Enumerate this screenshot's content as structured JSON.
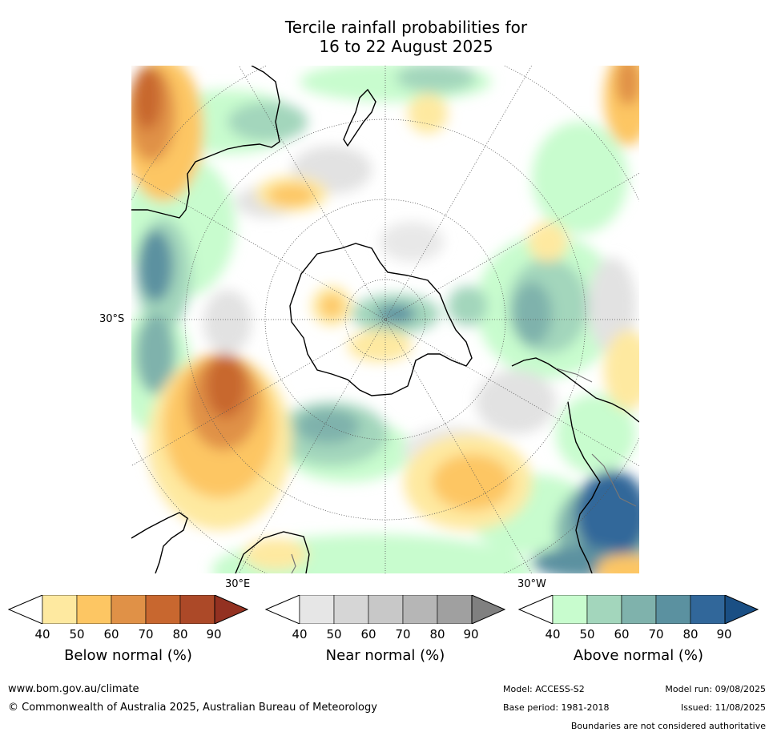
{
  "title_line1": "Tercile rainfall probabilities for",
  "title_line2": "16 to 22 August 2025",
  "map": {
    "lat_label": "30°S",
    "lon_labels": [
      "30°E",
      "30°W"
    ]
  },
  "legends": [
    {
      "name": "Below normal (%)",
      "ticks": [
        "40",
        "50",
        "60",
        "70",
        "80",
        "90"
      ],
      "colors": [
        "#ffffff",
        "#fee9a0",
        "#fdc663",
        "#e09147",
        "#c8672f",
        "#ac4928",
        "#933121"
      ]
    },
    {
      "name": "Near normal (%)",
      "ticks": [
        "40",
        "50",
        "60",
        "70",
        "80",
        "90"
      ],
      "colors": [
        "#ffffff",
        "#e6e6e6",
        "#d6d6d6",
        "#c8c8c8",
        "#b6b6b6",
        "#a0a0a0",
        "#808080"
      ]
    },
    {
      "name": "Above normal (%)",
      "ticks": [
        "40",
        "50",
        "60",
        "70",
        "80",
        "90"
      ],
      "colors": [
        "#ffffff",
        "#c8fcce",
        "#a3d6bc",
        "#7fb2ac",
        "#5b91a0",
        "#31679a",
        "#1a4f84"
      ]
    }
  ],
  "footer": {
    "url": "www.bom.gov.au/climate",
    "copyright": "© Commonwealth of Australia 2025, Australian Bureau of Meteorology",
    "model": "Model: ACCESS-S2",
    "base_period": "Base period: 1981-2018",
    "model_run": "Model run: 09/08/2025",
    "issued": "Issued: 11/08/2025",
    "disclaimer": "Boundaries are not considered authoritative"
  }
}
